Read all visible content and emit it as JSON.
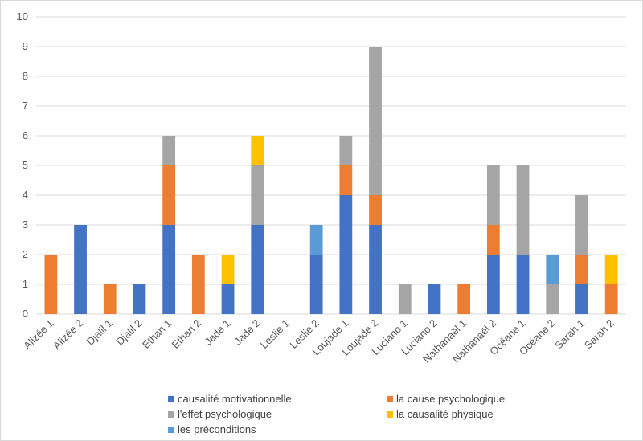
{
  "chart_data": {
    "type": "bar",
    "stacked": true,
    "title": "",
    "xlabel": "",
    "ylabel": "",
    "ylim": [
      0,
      10
    ],
    "yticks": [
      0,
      1,
      2,
      3,
      4,
      5,
      6,
      7,
      8,
      9,
      10
    ],
    "grid": true,
    "legend_position": "bottom",
    "categories": [
      "Alizée 1",
      "Alizée 2",
      "Djalil 1",
      "Djalil 2",
      "Ethan 1",
      "Ethan 2",
      "Jade 1",
      "Jade 2",
      "Leslie 1",
      "Leslie 2",
      "Loujade 1",
      "Loujade 2",
      "Luciano 1",
      "Luciano 2",
      "Nathanaël 1",
      "Nathanaël 2",
      "Océane 1",
      "Océane 2",
      "Sarah 1",
      "Sarah 2"
    ],
    "series": [
      {
        "name": "causalité motivationnelle",
        "color": "#4472c4",
        "values": [
          0,
          3,
          0,
          1,
          3,
          0,
          1,
          3,
          0,
          2,
          4,
          3,
          0,
          1,
          0,
          2,
          2,
          0,
          1,
          0
        ]
      },
      {
        "name": "la cause psychologique",
        "color": "#ed7d31",
        "values": [
          2,
          0,
          1,
          0,
          2,
          2,
          0,
          0,
          0,
          0,
          1,
          1,
          0,
          0,
          1,
          1,
          0,
          0,
          1,
          1
        ]
      },
      {
        "name": "l'effet psychologique",
        "color": "#a5a5a5",
        "values": [
          0,
          0,
          0,
          0,
          1,
          0,
          0,
          2,
          0,
          0,
          1,
          5,
          1,
          0,
          0,
          2,
          3,
          1,
          2,
          0
        ]
      },
      {
        "name": "la causalité physique",
        "color": "#ffc000",
        "values": [
          0,
          0,
          0,
          0,
          0,
          0,
          1,
          1,
          0,
          0,
          0,
          0,
          0,
          0,
          0,
          0,
          0,
          0,
          0,
          1
        ]
      },
      {
        "name": "les préconditions",
        "color": "#5b9bd5",
        "values": [
          0,
          0,
          0,
          0,
          0,
          0,
          0,
          0,
          0,
          1,
          0,
          0,
          0,
          0,
          0,
          0,
          0,
          1,
          0,
          0
        ]
      }
    ]
  }
}
